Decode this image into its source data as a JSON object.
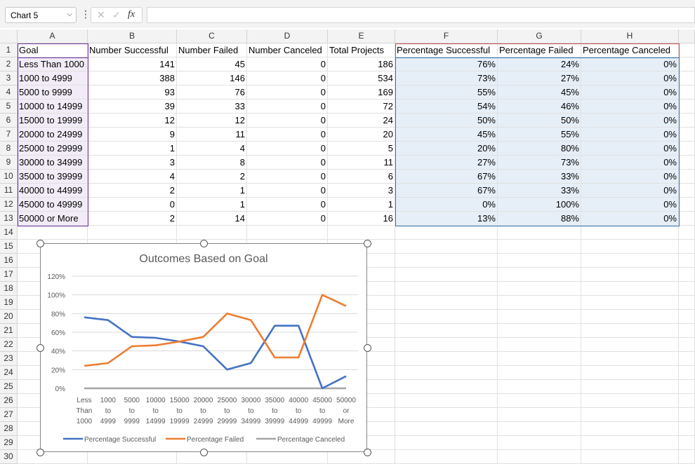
{
  "name_box": "Chart 5",
  "formula": {
    "fx_label": "fx",
    "cancel_glyph": "✕",
    "enter_glyph": "✓"
  },
  "columns": [
    "A",
    "B",
    "C",
    "D",
    "E",
    "F",
    "G",
    "H"
  ],
  "header_row": [
    "Goal",
    "Number Successful",
    "Number Failed",
    "Number Canceled",
    "Total Projects",
    "Percentage Successful",
    "Percentage Failed",
    "Percentage Canceled"
  ],
  "rows": [
    [
      "Less Than 1000",
      "141",
      "45",
      "0",
      "186",
      "76%",
      "24%",
      "0%"
    ],
    [
      "1000 to 4999",
      "388",
      "146",
      "0",
      "534",
      "73%",
      "27%",
      "0%"
    ],
    [
      "5000 to 9999",
      "93",
      "76",
      "0",
      "169",
      "55%",
      "45%",
      "0%"
    ],
    [
      "10000 to 14999",
      "39",
      "33",
      "0",
      "72",
      "54%",
      "46%",
      "0%"
    ],
    [
      "15000 to 19999",
      "12",
      "12",
      "0",
      "24",
      "50%",
      "50%",
      "0%"
    ],
    [
      "20000 to 24999",
      "9",
      "11",
      "0",
      "20",
      "45%",
      "55%",
      "0%"
    ],
    [
      "25000 to 29999",
      "1",
      "4",
      "0",
      "5",
      "20%",
      "80%",
      "0%"
    ],
    [
      "30000 to 34999",
      "3",
      "8",
      "0",
      "11",
      "27%",
      "73%",
      "0%"
    ],
    [
      "35000 to 39999",
      "4",
      "2",
      "0",
      "6",
      "67%",
      "33%",
      "0%"
    ],
    [
      "40000 to 44999",
      "2",
      "1",
      "0",
      "3",
      "67%",
      "33%",
      "0%"
    ],
    [
      "45000 to 49999",
      "0",
      "1",
      "0",
      "1",
      "0%",
      "100%",
      "0%"
    ],
    [
      "50000 or More",
      "2",
      "14",
      "0",
      "16",
      "13%",
      "88%",
      "0%"
    ]
  ],
  "row_numbers": [
    "1",
    "2",
    "3",
    "4",
    "5",
    "6",
    "7",
    "8",
    "9",
    "10",
    "11",
    "12",
    "13",
    "14",
    "15",
    "16",
    "17",
    "18",
    "19",
    "20",
    "21",
    "22",
    "23",
    "24",
    "25",
    "26",
    "27",
    "28",
    "29",
    "30"
  ],
  "chart_data": {
    "type": "line",
    "title": "Outcomes Based on Goal",
    "categories": [
      [
        "Less",
        "Than",
        "1000"
      ],
      [
        "1000",
        "to",
        "4999"
      ],
      [
        "5000",
        "to",
        "9999"
      ],
      [
        "10000",
        "to",
        "14999"
      ],
      [
        "15000",
        "to",
        "19999"
      ],
      [
        "20000",
        "to",
        "24999"
      ],
      [
        "25000",
        "to",
        "29999"
      ],
      [
        "30000",
        "to",
        "34999"
      ],
      [
        "35000",
        "to",
        "39999"
      ],
      [
        "40000",
        "to",
        "44999"
      ],
      [
        "45000",
        "to",
        "49999"
      ],
      [
        "50000",
        "or",
        "More"
      ]
    ],
    "ylim": [
      0,
      120
    ],
    "yticks": [
      "0%",
      "20%",
      "40%",
      "60%",
      "80%",
      "100%",
      "120%"
    ],
    "grid": true,
    "legend": "bottom",
    "series": [
      {
        "name": "Percentage Successful",
        "color": "#4472c4",
        "values": [
          76,
          73,
          55,
          54,
          50,
          45,
          20,
          27,
          67,
          67,
          0,
          13
        ]
      },
      {
        "name": "Percentage Failed",
        "color": "#ed7d31",
        "values": [
          24,
          27,
          45,
          46,
          50,
          55,
          80,
          73,
          33,
          33,
          100,
          88
        ]
      },
      {
        "name": "Percentage Canceled",
        "color": "#a5a5a5",
        "values": [
          0,
          0,
          0,
          0,
          0,
          0,
          0,
          0,
          0,
          0,
          0,
          0
        ]
      }
    ]
  },
  "colors": {
    "select_goal": "#7030a0",
    "select_pct": "#2e75b6",
    "select_header": "#c0504d"
  }
}
